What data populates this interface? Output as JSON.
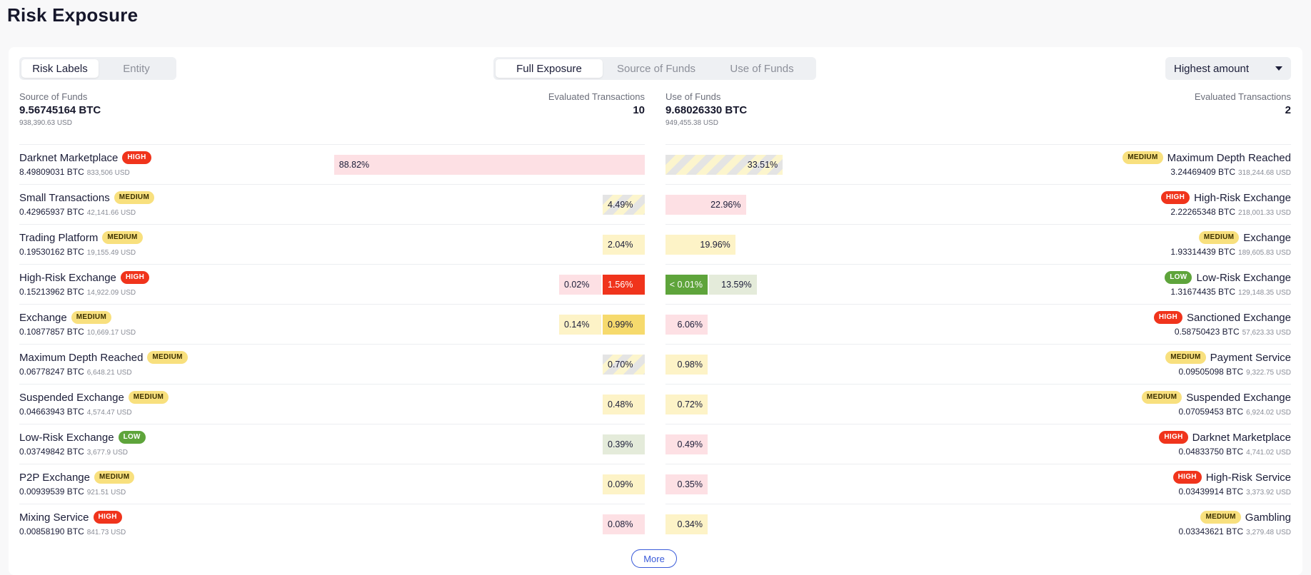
{
  "page_title": "Risk Exposure",
  "view_toggle": [
    "Risk Labels",
    "Entity"
  ],
  "flow_tabs": [
    "Full Exposure",
    "Source of Funds",
    "Use of Funds"
  ],
  "sort_dropdown": "Highest amount",
  "colors": {
    "high": "#f0341c",
    "medium": "#f8e07e",
    "low": "#5ea43b",
    "accent": "#3a5bd9"
  },
  "source": {
    "label": "Source of Funds",
    "btc": "9.56745164 BTC",
    "usd": "938,390.63 USD",
    "eval_label": "Evaluated Transactions",
    "eval_count": "10",
    "rows": [
      {
        "name": "Darknet Marketplace",
        "risk": "HIGH",
        "btc": "8.49809031 BTC",
        "usd": "833,506 USD",
        "segments": [
          {
            "label": "88.82%",
            "pct": 88.82,
            "style": "high"
          }
        ]
      },
      {
        "name": "Small Transactions",
        "risk": "MEDIUM",
        "btc": "0.42965937 BTC",
        "usd": "42,141.66 USD",
        "segments": [
          {
            "label": "4.49%",
            "pct": 4.49,
            "style": "stripe"
          }
        ]
      },
      {
        "name": "Trading Platform",
        "risk": "MEDIUM",
        "btc": "0.19530162 BTC",
        "usd": "19,155.49 USD",
        "segments": [
          {
            "label": "2.04%",
            "pct": 2.04,
            "style": "medium"
          }
        ]
      },
      {
        "name": "High-Risk Exchange",
        "risk": "HIGH",
        "btc": "0.15213962 BTC",
        "usd": "14,922.09 USD",
        "segments": [
          {
            "label": "0.02%",
            "pct": 0.02,
            "style": "high"
          },
          {
            "label": "1.56%",
            "pct": 1.56,
            "style": "highsolid"
          }
        ]
      },
      {
        "name": "Exchange",
        "risk": "MEDIUM",
        "btc": "0.10877857 BTC",
        "usd": "10,669.17 USD",
        "segments": [
          {
            "label": "0.14%",
            "pct": 0.14,
            "style": "medium"
          },
          {
            "label": "0.99%",
            "pct": 0.99,
            "style": "medsolid"
          }
        ]
      },
      {
        "name": "Maximum Depth Reached",
        "risk": "MEDIUM",
        "btc": "0.06778247 BTC",
        "usd": "6,648.21 USD",
        "segments": [
          {
            "label": "0.70%",
            "pct": 0.7,
            "style": "stripe"
          }
        ]
      },
      {
        "name": "Suspended Exchange",
        "risk": "MEDIUM",
        "btc": "0.04663943 BTC",
        "usd": "4,574.47 USD",
        "segments": [
          {
            "label": "0.48%",
            "pct": 0.48,
            "style": "medium"
          }
        ]
      },
      {
        "name": "Low-Risk Exchange",
        "risk": "LOW",
        "btc": "0.03749842 BTC",
        "usd": "3,677.9 USD",
        "segments": [
          {
            "label": "0.39%",
            "pct": 0.39,
            "style": "low"
          }
        ]
      },
      {
        "name": "P2P Exchange",
        "risk": "MEDIUM",
        "btc": "0.00939539 BTC",
        "usd": "921.51 USD",
        "segments": [
          {
            "label": "0.09%",
            "pct": 0.09,
            "style": "medium"
          }
        ]
      },
      {
        "name": "Mixing Service",
        "risk": "HIGH",
        "btc": "0.00858190 BTC",
        "usd": "841.73 USD",
        "segments": [
          {
            "label": "0.08%",
            "pct": 0.08,
            "style": "high"
          }
        ]
      }
    ]
  },
  "use": {
    "label": "Use of Funds",
    "btc": "9.68026330 BTC",
    "usd": "949,455.38 USD",
    "eval_label": "Evaluated Transactions",
    "eval_count": "2",
    "rows": [
      {
        "name": "Maximum Depth Reached",
        "risk": "MEDIUM",
        "btc": "3.24469409 BTC",
        "usd": "318,244.68 USD",
        "segments": [
          {
            "label": "33.51%",
            "pct": 33.51,
            "style": "stripe"
          }
        ]
      },
      {
        "name": "High-Risk Exchange",
        "risk": "HIGH",
        "btc": "2.22265348 BTC",
        "usd": "218,001.33 USD",
        "segments": [
          {
            "label": "22.96%",
            "pct": 22.96,
            "style": "high"
          }
        ]
      },
      {
        "name": "Exchange",
        "risk": "MEDIUM",
        "btc": "1.93314439 BTC",
        "usd": "189,605.83 USD",
        "segments": [
          {
            "label": "19.96%",
            "pct": 19.96,
            "style": "medium"
          }
        ]
      },
      {
        "name": "Low-Risk Exchange",
        "risk": "LOW",
        "btc": "1.31674435 BTC",
        "usd": "129,148.35 USD",
        "segments": [
          {
            "label": "< 0.01%",
            "pct": 0.01,
            "style": "lowsolid"
          },
          {
            "label": "13.59%",
            "pct": 13.59,
            "style": "low"
          }
        ]
      },
      {
        "name": "Sanctioned Exchange",
        "risk": "HIGH",
        "btc": "0.58750423 BTC",
        "usd": "57,623.33 USD",
        "segments": [
          {
            "label": "6.06%",
            "pct": 6.06,
            "style": "high"
          }
        ]
      },
      {
        "name": "Payment Service",
        "risk": "MEDIUM",
        "btc": "0.09505098 BTC",
        "usd": "9,322.75 USD",
        "segments": [
          {
            "label": "0.98%",
            "pct": 0.98,
            "style": "medium"
          }
        ]
      },
      {
        "name": "Suspended Exchange",
        "risk": "MEDIUM",
        "btc": "0.07059453 BTC",
        "usd": "6,924.02 USD",
        "segments": [
          {
            "label": "0.72%",
            "pct": 0.72,
            "style": "medium"
          }
        ]
      },
      {
        "name": "Darknet Marketplace",
        "risk": "HIGH",
        "btc": "0.04833750 BTC",
        "usd": "4,741.02 USD",
        "segments": [
          {
            "label": "0.49%",
            "pct": 0.49,
            "style": "high"
          }
        ]
      },
      {
        "name": "High-Risk Service",
        "risk": "HIGH",
        "btc": "0.03439914 BTC",
        "usd": "3,373.92 USD",
        "segments": [
          {
            "label": "0.35%",
            "pct": 0.35,
            "style": "high"
          }
        ]
      },
      {
        "name": "Gambling",
        "risk": "MEDIUM",
        "btc": "0.03343621 BTC",
        "usd": "3,279.48 USD",
        "segments": [
          {
            "label": "0.34%",
            "pct": 0.34,
            "style": "medium"
          }
        ]
      }
    ]
  },
  "more_label": "More"
}
